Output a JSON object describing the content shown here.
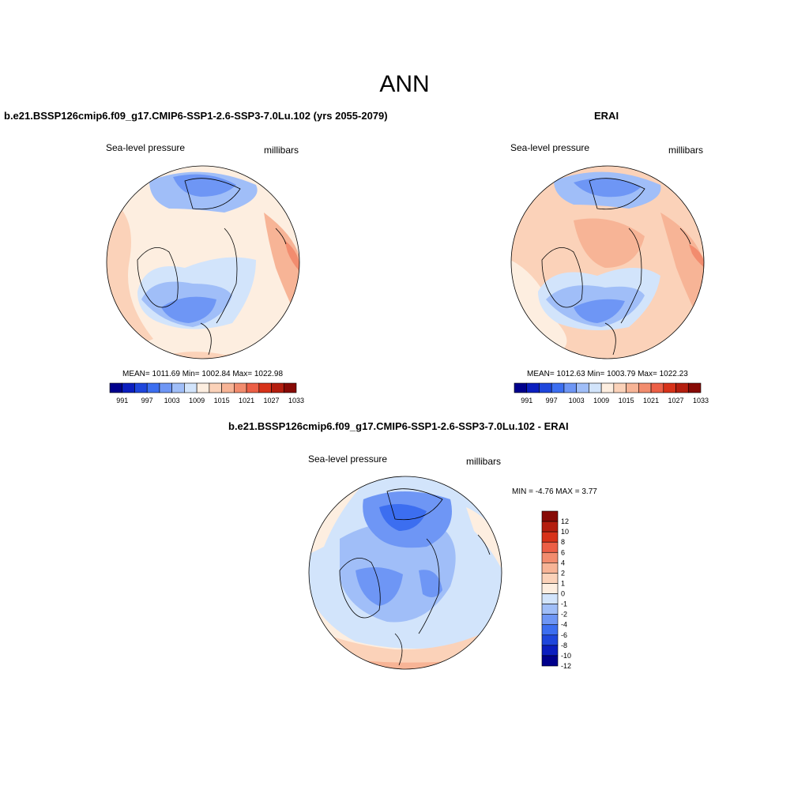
{
  "title": "ANN",
  "panels": [
    {
      "title": "b.e21.BSSP126cmip6.f09_g17.CMIP6-SSP1-2.6-SSP3-7.0Lu.102 (yrs 2055-2079)",
      "left_label": "Sea-level pressure",
      "right_label": "millibars",
      "stats": "MEAN= 1011.69  Min= 1002.84  Max= 1022.98",
      "colorbar_labels": [
        "991",
        "997",
        "1003",
        "1009",
        "1015",
        "1021",
        "1027",
        "1033"
      ]
    },
    {
      "title": "ERAI",
      "left_label": "Sea-level pressure",
      "right_label": "millibars",
      "stats": "MEAN= 1012.63  Min= 1003.79  Max= 1022.23",
      "colorbar_labels": [
        "991",
        "997",
        "1003",
        "1009",
        "1015",
        "1021",
        "1027",
        "1033"
      ]
    },
    {
      "title": "b.e21.BSSP126cmip6.f09_g17.CMIP6-SSP1-2.6-SSP3-7.0Lu.102 - ERAI",
      "left_label": "Sea-level pressure",
      "right_label": "millibars",
      "stats": "MIN =  -4.76 MAX =   3.77",
      "colorbar_labels": [
        "12",
        "10",
        "8",
        "6",
        "4",
        "2",
        "1",
        "0",
        "-1",
        "-2",
        "-4",
        "-6",
        "-8",
        "-10",
        "-12"
      ]
    }
  ],
  "colors": {
    "abs_scale": [
      "#00008c",
      "#0b1ebf",
      "#1e46dc",
      "#3c6ef0",
      "#6e96f5",
      "#a0bef8",
      "#d2e4fb",
      "#fdeee0",
      "#fbd2b9",
      "#f7b496",
      "#f28c6e",
      "#ec5f46",
      "#d73219",
      "#b41e0f",
      "#870a05"
    ],
    "diff_scale": [
      "#870a05",
      "#b41e0f",
      "#d73219",
      "#ec5f46",
      "#f28c6e",
      "#f7b496",
      "#fbd2b9",
      "#fdeee0",
      "#d2e4fb",
      "#a0bef8",
      "#6e96f5",
      "#3c6ef0",
      "#1e46dc",
      "#0b1ebf",
      "#00008c"
    ]
  }
}
